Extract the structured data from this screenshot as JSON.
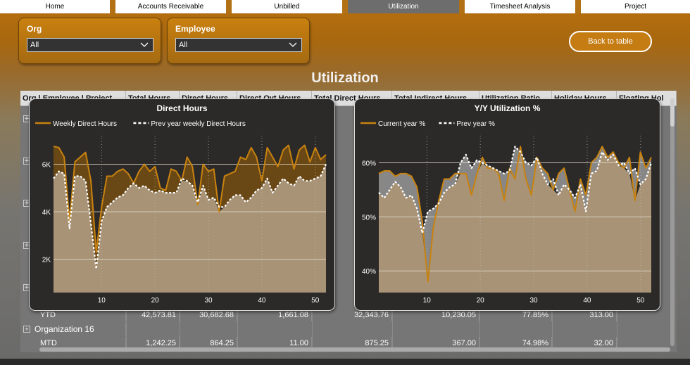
{
  "nav": {
    "tabs": [
      "Home",
      "Accounts Receivable",
      "Unbilled",
      "Utilization",
      "Timesheet Analysis",
      "Project"
    ],
    "active_tab": "Utilization"
  },
  "filters": {
    "org": {
      "label": "Org",
      "value": "All"
    },
    "employee": {
      "label": "Employee",
      "value": "All"
    }
  },
  "back_button": "Back to table",
  "page_title": "Utilization",
  "table": {
    "headers": [
      "Org | Employee | Project",
      "Total Hours",
      "Direct Hours",
      "Direct Ovt Hours",
      "Total Direct Hours",
      "Total Indirect Hours",
      "Utilization Ratio",
      "Holiday Hours",
      "Floating Hol"
    ],
    "rows": [
      {
        "label": "YTD",
        "expandable": false,
        "cells": [
          "42,573.81",
          "30,682.68",
          "1,661.08",
          "32,343.76",
          "10,230.05",
          "77.85%",
          "313.00",
          ""
        ]
      },
      {
        "label": "Organization 16",
        "expandable": true,
        "cells": [
          "",
          "",
          "",
          "",
          "",
          "",
          "",
          ""
        ]
      },
      {
        "label": "MTD",
        "expandable": false,
        "cells": [
          "1,242.25",
          "864.25",
          "11.00",
          "875.25",
          "367.00",
          "74.98%",
          "32.00",
          ""
        ]
      }
    ]
  },
  "chart_data": [
    {
      "type": "area",
      "title": "Direct Hours",
      "series": [
        {
          "name": "Weekly Direct Hours",
          "color": "#c8820f",
          "values": [
            6750,
            6700,
            6300,
            3600,
            6100,
            6300,
            6500,
            5300,
            2300,
            4200,
            5500,
            5500,
            5700,
            5800,
            5600,
            5200,
            5700,
            6000,
            5700,
            5900,
            5000,
            4900,
            5800,
            5700,
            5300,
            6300,
            5900,
            4300,
            6000,
            5700,
            5800,
            4000,
            5500,
            5600,
            5700,
            6300,
            6200,
            6700,
            6300,
            5300,
            6700,
            6300,
            5900,
            6600,
            6800,
            5800,
            6600,
            6800,
            6100,
            6700,
            6200,
            6400
          ]
        },
        {
          "name": "Prev year weekly Direct Hours",
          "color": "#ffffff",
          "dashed": true,
          "values": [
            5400,
            5700,
            5600,
            3300,
            5500,
            5500,
            5300,
            3500,
            1600,
            3600,
            4200,
            4400,
            4600,
            4700,
            5000,
            5200,
            5000,
            5100,
            4900,
            4800,
            4900,
            4800,
            4800,
            4800,
            5400,
            5300,
            5100,
            4400,
            5100,
            4500,
            4600,
            4200,
            4200,
            4500,
            4700,
            4700,
            4400,
            4600,
            4900,
            5000,
            5400,
            4800,
            5100,
            5400,
            5200,
            5100,
            5500,
            5300,
            5300,
            5400,
            5500,
            6000
          ]
        }
      ],
      "x": {
        "range": [
          1,
          52
        ],
        "ticks": [
          10,
          20,
          30,
          40,
          50
        ]
      },
      "y": {
        "range": [
          600,
          7200
        ],
        "ticks": [
          2000,
          4000,
          6000
        ],
        "tick_labels": [
          "2K",
          "4K",
          "6K"
        ]
      }
    },
    {
      "type": "area",
      "title": "Y/Y Utilization %",
      "series": [
        {
          "name": "Current year %",
          "color": "#c8820f",
          "values": [
            58,
            58.5,
            58.5,
            57.5,
            58,
            58,
            57.5,
            55.5,
            49,
            38,
            48,
            53,
            57,
            57,
            58,
            58,
            58,
            54,
            58,
            61,
            59,
            59,
            58,
            53,
            59,
            57,
            63,
            57,
            54,
            61,
            59,
            58,
            55,
            58,
            59,
            55,
            51,
            57,
            54,
            60,
            61,
            63,
            61,
            62,
            60,
            59,
            61,
            53,
            62,
            59,
            61
          ]
        },
        {
          "name": "Prev year %",
          "color": "#ffffff",
          "dashed": true,
          "values": [
            54.5,
            53.5,
            55,
            56.5,
            55.5,
            53.5,
            54,
            51.5,
            47,
            51,
            51.5,
            52.5,
            54.5,
            55.5,
            56,
            60,
            61.5,
            59,
            60.5,
            60,
            59.5,
            59,
            58.5,
            58,
            58.5,
            63,
            62,
            60,
            59.5,
            61,
            58,
            56,
            57,
            54,
            56,
            55,
            53.5,
            56,
            51,
            58,
            58.5,
            62,
            60.5,
            61.5,
            59.5,
            60,
            58,
            59,
            56,
            57,
            60
          ]
        }
      ],
      "x": {
        "range": [
          1,
          52
        ],
        "ticks": [
          10,
          20,
          30,
          40,
          50
        ]
      },
      "y": {
        "range": [
          36,
          65
        ],
        "ticks": [
          40,
          50,
          60
        ],
        "tick_labels": [
          "40%",
          "50%",
          "60%"
        ]
      }
    }
  ]
}
